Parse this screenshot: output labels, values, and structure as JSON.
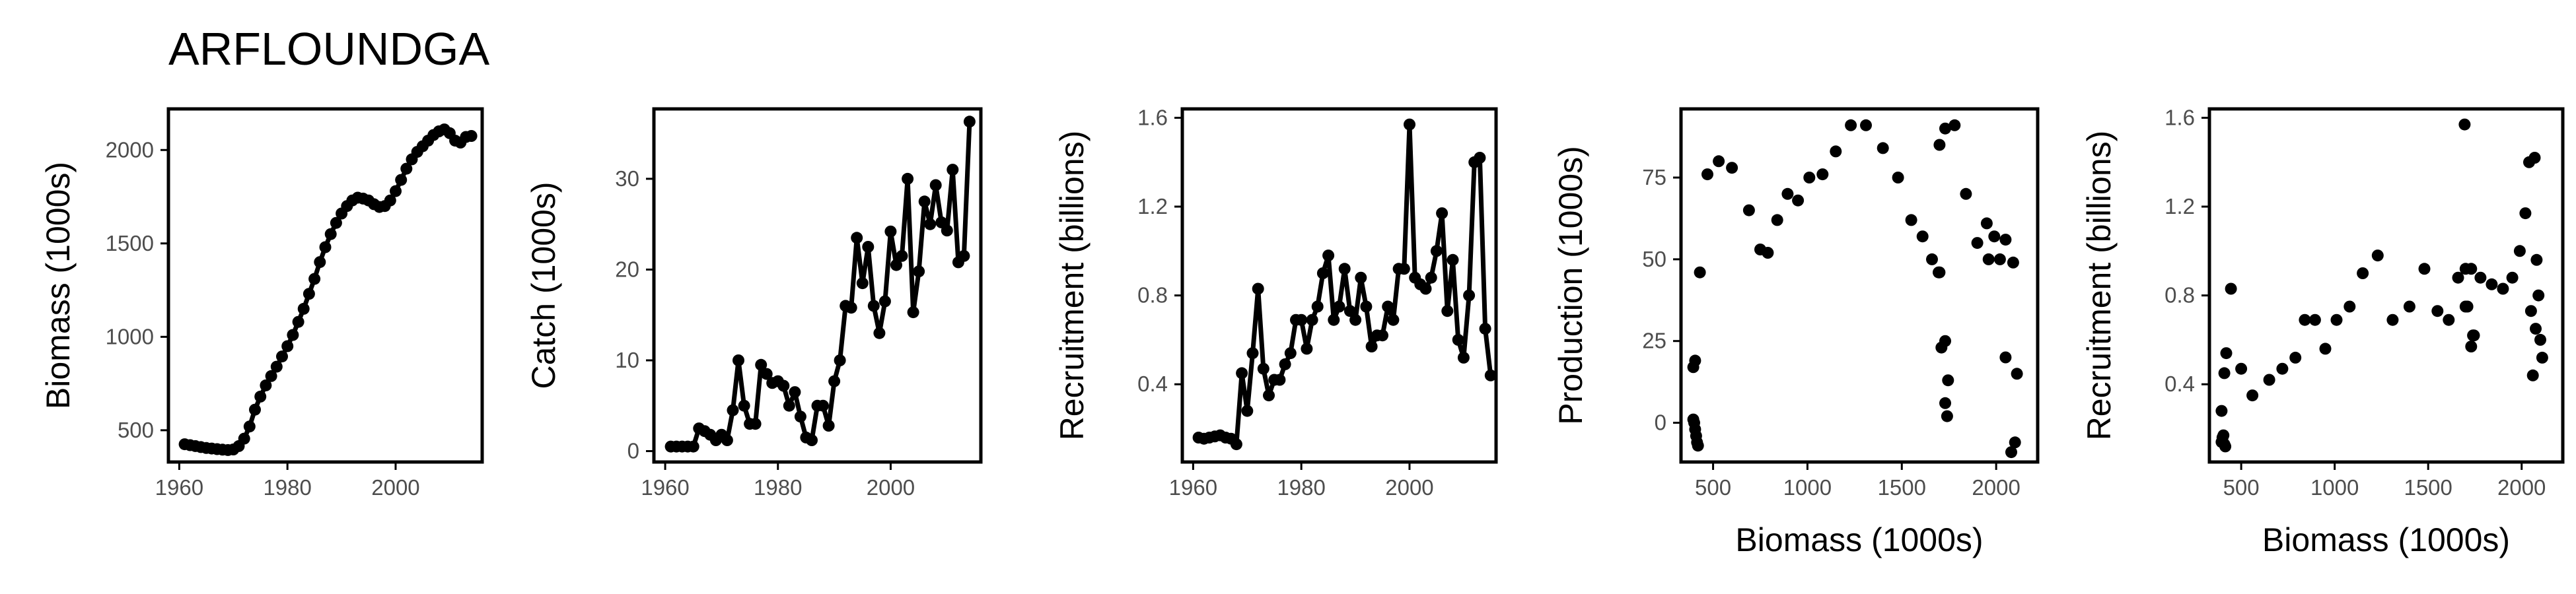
{
  "title": "ARFLOUNDGA",
  "chart_data": [
    {
      "type": "line",
      "xlabel": "",
      "ylabel": "Biomass (1000s)",
      "xlim": [
        1958,
        2016
      ],
      "ylim": [
        330,
        2220
      ],
      "xticks": [
        1960,
        1980,
        2000
      ],
      "yticks": [
        500,
        1000,
        1500,
        2000
      ],
      "xtick_labels": [
        "1960",
        "1980",
        "2000"
      ],
      "ytick_labels": [
        "500",
        "1000",
        "1500",
        "2000"
      ],
      "points": [
        [
          1961,
          425
        ],
        [
          1962,
          420
        ],
        [
          1963,
          415
        ],
        [
          1964,
          410
        ],
        [
          1965,
          405
        ],
        [
          1966,
          402
        ],
        [
          1967,
          399
        ],
        [
          1968,
          396
        ],
        [
          1969,
          394
        ],
        [
          1970,
          397
        ],
        [
          1971,
          415
        ],
        [
          1972,
          455
        ],
        [
          1973,
          520
        ],
        [
          1974,
          610
        ],
        [
          1975,
          680
        ],
        [
          1976,
          740
        ],
        [
          1977,
          790
        ],
        [
          1978,
          840
        ],
        [
          1979,
          895
        ],
        [
          1980,
          950
        ],
        [
          1981,
          1010
        ],
        [
          1982,
          1080
        ],
        [
          1983,
          1150
        ],
        [
          1984,
          1230
        ],
        [
          1985,
          1310
        ],
        [
          1986,
          1400
        ],
        [
          1987,
          1480
        ],
        [
          1988,
          1550
        ],
        [
          1989,
          1610
        ],
        [
          1990,
          1660
        ],
        [
          1991,
          1700
        ],
        [
          1992,
          1730
        ],
        [
          1993,
          1745
        ],
        [
          1994,
          1740
        ],
        [
          1995,
          1730
        ],
        [
          1996,
          1710
        ],
        [
          1997,
          1695
        ],
        [
          1998,
          1700
        ],
        [
          1999,
          1730
        ],
        [
          2000,
          1780
        ],
        [
          2001,
          1840
        ],
        [
          2002,
          1900
        ],
        [
          2003,
          1950
        ],
        [
          2004,
          1990
        ],
        [
          2005,
          2020
        ],
        [
          2006,
          2050
        ],
        [
          2007,
          2080
        ],
        [
          2008,
          2100
        ],
        [
          2009,
          2110
        ],
        [
          2010,
          2090
        ],
        [
          2011,
          2050
        ],
        [
          2012,
          2040
        ],
        [
          2013,
          2070
        ],
        [
          2014,
          2075
        ]
      ],
      "connected": true
    },
    {
      "type": "line",
      "xlabel": "",
      "ylabel": "Catch (1000s)",
      "xlim": [
        1958,
        2016
      ],
      "ylim": [
        -1.2,
        37.7
      ],
      "xticks": [
        1960,
        1980,
        2000
      ],
      "yticks": [
        0,
        10,
        20,
        30
      ],
      "xtick_labels": [
        "1960",
        "1980",
        "2000"
      ],
      "ytick_labels": [
        "0",
        "10",
        "20",
        "30"
      ],
      "points": [
        [
          1961,
          0.5
        ],
        [
          1962,
          0.5
        ],
        [
          1963,
          0.5
        ],
        [
          1964,
          0.5
        ],
        [
          1965,
          0.5
        ],
        [
          1966,
          2.5
        ],
        [
          1967,
          2.2
        ],
        [
          1968,
          1.8
        ],
        [
          1969,
          1.2
        ],
        [
          1970,
          1.8
        ],
        [
          1971,
          1.2
        ],
        [
          1972,
          4.5
        ],
        [
          1973,
          10.0
        ],
        [
          1974,
          5.0
        ],
        [
          1975,
          3.0
        ],
        [
          1976,
          3.0
        ],
        [
          1977,
          9.5
        ],
        [
          1978,
          8.5
        ],
        [
          1979,
          7.5
        ],
        [
          1980,
          7.7
        ],
        [
          1981,
          7.2
        ],
        [
          1982,
          5.0
        ],
        [
          1983,
          6.5
        ],
        [
          1984,
          3.8
        ],
        [
          1985,
          1.5
        ],
        [
          1986,
          1.2
        ],
        [
          1987,
          5.0
        ],
        [
          1988,
          5.0
        ],
        [
          1989,
          2.8
        ],
        [
          1990,
          7.7
        ],
        [
          1991,
          10.0
        ],
        [
          1992,
          16.0
        ],
        [
          1993,
          15.8
        ],
        [
          1994,
          23.5
        ],
        [
          1995,
          18.5
        ],
        [
          1996,
          22.5
        ],
        [
          1997,
          16.0
        ],
        [
          1998,
          13.0
        ],
        [
          1999,
          16.5
        ],
        [
          2000,
          24.2
        ],
        [
          2001,
          20.5
        ],
        [
          2002,
          21.5
        ],
        [
          2003,
          30.0
        ],
        [
          2004,
          15.3
        ],
        [
          2005,
          19.8
        ],
        [
          2006,
          27.5
        ],
        [
          2007,
          25.0
        ],
        [
          2008,
          29.3
        ],
        [
          2009,
          25.2
        ],
        [
          2010,
          24.3
        ],
        [
          2011,
          31.0
        ],
        [
          2012,
          20.8
        ],
        [
          2013,
          21.5
        ],
        [
          2014,
          36.3
        ]
      ],
      "connected": true
    },
    {
      "type": "line",
      "xlabel": "",
      "ylabel": "Recruitment (billions)",
      "xlim": [
        1958,
        2016
      ],
      "ylim": [
        0.05,
        1.64
      ],
      "xticks": [
        1960,
        1980,
        2000
      ],
      "yticks": [
        0.4,
        0.8,
        1.2,
        1.6
      ],
      "xtick_labels": [
        "1960",
        "1980",
        "2000"
      ],
      "ytick_labels": [
        "0.4",
        "0.8",
        "1.2",
        "1.6"
      ],
      "points": [
        [
          1961,
          0.16
        ],
        [
          1962,
          0.155
        ],
        [
          1963,
          0.16
        ],
        [
          1964,
          0.165
        ],
        [
          1965,
          0.17
        ],
        [
          1966,
          0.16
        ],
        [
          1967,
          0.155
        ],
        [
          1968,
          0.13
        ],
        [
          1969,
          0.45
        ],
        [
          1970,
          0.28
        ],
        [
          1971,
          0.54
        ],
        [
          1972,
          0.83
        ],
        [
          1973,
          0.47
        ],
        [
          1974,
          0.35
        ],
        [
          1975,
          0.42
        ],
        [
          1976,
          0.42
        ],
        [
          1977,
          0.49
        ],
        [
          1978,
          0.54
        ],
        [
          1979,
          0.69
        ],
        [
          1980,
          0.69
        ],
        [
          1981,
          0.56
        ],
        [
          1982,
          0.69
        ],
        [
          1983,
          0.75
        ],
        [
          1984,
          0.9
        ],
        [
          1985,
          0.98
        ],
        [
          1986,
          0.69
        ],
        [
          1987,
          0.75
        ],
        [
          1988,
          0.92
        ],
        [
          1989,
          0.73
        ],
        [
          1990,
          0.69
        ],
        [
          1991,
          0.88
        ],
        [
          1992,
          0.75
        ],
        [
          1993,
          0.57
        ],
        [
          1994,
          0.62
        ],
        [
          1995,
          0.62
        ],
        [
          1996,
          0.75
        ],
        [
          1997,
          0.69
        ],
        [
          1998,
          0.92
        ],
        [
          1999,
          0.92
        ],
        [
          2000,
          1.57
        ],
        [
          2001,
          0.88
        ],
        [
          2002,
          0.85
        ],
        [
          2003,
          0.83
        ],
        [
          2004,
          0.88
        ],
        [
          2005,
          1.0
        ],
        [
          2006,
          1.17
        ],
        [
          2007,
          0.73
        ],
        [
          2008,
          0.96
        ],
        [
          2009,
          0.6
        ],
        [
          2010,
          0.52
        ],
        [
          2011,
          0.8
        ],
        [
          2012,
          1.4
        ],
        [
          2013,
          1.42
        ],
        [
          2014,
          0.65
        ],
        [
          2015,
          0.44
        ]
      ],
      "connected": true
    },
    {
      "type": "scatter",
      "xlabel": "Biomass (1000s)",
      "ylabel": "Production (1000s)",
      "xlim": [
        330,
        2220
      ],
      "ylim": [
        -12,
        96
      ],
      "xticks": [
        500,
        1000,
        1500,
        2000
      ],
      "yticks": [
        0,
        25,
        50,
        75
      ],
      "xtick_labels": [
        "500",
        "1000",
        "1500",
        "2000"
      ],
      "ytick_labels": [
        "0",
        "25",
        "50",
        "75"
      ],
      "points": [
        [
          395,
          17
        ],
        [
          405,
          19
        ],
        [
          395,
          1
        ],
        [
          400,
          0
        ],
        [
          405,
          -2
        ],
        [
          410,
          -4
        ],
        [
          415,
          -6
        ],
        [
          420,
          -7
        ],
        [
          430,
          46
        ],
        [
          470,
          76
        ],
        [
          530,
          80
        ],
        [
          600,
          78
        ],
        [
          690,
          65
        ],
        [
          750,
          53
        ],
        [
          790,
          52
        ],
        [
          840,
          62
        ],
        [
          895,
          70
        ],
        [
          950,
          68
        ],
        [
          1010,
          75
        ],
        [
          1080,
          76
        ],
        [
          1150,
          83
        ],
        [
          1230,
          91
        ],
        [
          1310,
          91
        ],
        [
          1400,
          84
        ],
        [
          1480,
          75
        ],
        [
          1550,
          62
        ],
        [
          1610,
          57
        ],
        [
          1660,
          50
        ],
        [
          1700,
          46
        ],
        [
          1730,
          25
        ],
        [
          1745,
          13
        ],
        [
          1740,
          2
        ],
        [
          1730,
          6
        ],
        [
          1710,
          23
        ],
        [
          1695,
          46
        ],
        [
          1700,
          85
        ],
        [
          1730,
          90
        ],
        [
          1780,
          91
        ],
        [
          1840,
          70
        ],
        [
          1900,
          55
        ],
        [
          1950,
          61
        ],
        [
          1990,
          57
        ],
        [
          2020,
          50
        ],
        [
          2050,
          20
        ],
        [
          2080,
          -9
        ],
        [
          2100,
          -6
        ],
        [
          2110,
          15
        ],
        [
          2090,
          49
        ],
        [
          2050,
          56
        ],
        [
          1960,
          50
        ]
      ],
      "connected": false
    },
    {
      "type": "scatter",
      "xlabel": "Biomass (1000s)",
      "ylabel": "Recruitment (billions)",
      "xlim": [
        330,
        2220
      ],
      "ylim": [
        0.05,
        1.64
      ],
      "xticks": [
        500,
        1000,
        1500,
        2000
      ],
      "yticks": [
        0.4,
        0.8,
        1.2,
        1.6
      ],
      "xtick_labels": [
        "500",
        "1000",
        "1500",
        "2000"
      ],
      "ytick_labels": [
        "0.4",
        "0.8",
        "1.2",
        "1.6"
      ],
      "points": [
        [
          395,
          0.14
        ],
        [
          400,
          0.16
        ],
        [
          405,
          0.17
        ],
        [
          410,
          0.13
        ],
        [
          415,
          0.12
        ],
        [
          395,
          0.28
        ],
        [
          410,
          0.45
        ],
        [
          420,
          0.54
        ],
        [
          445,
          0.83
        ],
        [
          500,
          0.47
        ],
        [
          560,
          0.35
        ],
        [
          650,
          0.42
        ],
        [
          720,
          0.47
        ],
        [
          790,
          0.52
        ],
        [
          840,
          0.69
        ],
        [
          895,
          0.69
        ],
        [
          950,
          0.56
        ],
        [
          1010,
          0.69
        ],
        [
          1080,
          0.75
        ],
        [
          1150,
          0.9
        ],
        [
          1230,
          0.98
        ],
        [
          1310,
          0.69
        ],
        [
          1400,
          0.75
        ],
        [
          1480,
          0.92
        ],
        [
          1550,
          0.73
        ],
        [
          1610,
          0.69
        ],
        [
          1660,
          0.88
        ],
        [
          1700,
          0.75
        ],
        [
          1730,
          0.57
        ],
        [
          1745,
          0.62
        ],
        [
          1740,
          0.62
        ],
        [
          1710,
          0.75
        ],
        [
          1695,
          1.57
        ],
        [
          1700,
          0.92
        ],
        [
          1730,
          0.92
        ],
        [
          1780,
          0.88
        ],
        [
          1840,
          0.85
        ],
        [
          1900,
          0.83
        ],
        [
          1950,
          0.88
        ],
        [
          1990,
          1.0
        ],
        [
          2020,
          1.17
        ],
        [
          2050,
          0.73
        ],
        [
          2080,
          0.96
        ],
        [
          2100,
          0.6
        ],
        [
          2110,
          0.52
        ],
        [
          2090,
          0.8
        ],
        [
          2040,
          1.4
        ],
        [
          2070,
          1.42
        ],
        [
          2075,
          0.65
        ],
        [
          2060,
          0.44
        ]
      ],
      "connected": false
    }
  ]
}
